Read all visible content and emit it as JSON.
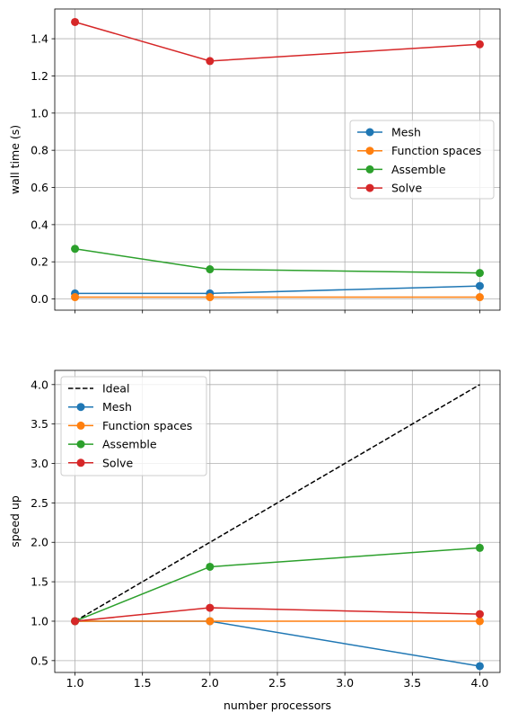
{
  "chart_data": [
    {
      "type": "line",
      "title": "",
      "xlabel": "",
      "ylabel": "wall time (s)",
      "x": [
        1,
        2,
        4
      ],
      "xlim": [
        0.85,
        4.15
      ],
      "ylim": [
        -0.06,
        1.56
      ],
      "xticks": [
        1.0,
        1.5,
        2.0,
        2.5,
        3.0,
        3.5,
        4.0
      ],
      "xtick_labels_visible": false,
      "yticks": [
        0.0,
        0.2,
        0.4,
        0.6,
        0.8,
        1.0,
        1.2,
        1.4
      ],
      "ytick_labels": [
        "0.0",
        "0.2",
        "0.4",
        "0.6",
        "0.8",
        "1.0",
        "1.2",
        "1.4"
      ],
      "grid": true,
      "legend_position": "center-right",
      "series": [
        {
          "name": "Mesh",
          "color": "#1f77b4",
          "marker": "circle",
          "values": [
            0.03,
            0.03,
            0.07
          ]
        },
        {
          "name": "Function spaces",
          "color": "#ff7f0e",
          "marker": "circle",
          "values": [
            0.01,
            0.01,
            0.01
          ]
        },
        {
          "name": "Assemble",
          "color": "#2ca02c",
          "marker": "circle",
          "values": [
            0.27,
            0.16,
            0.14
          ]
        },
        {
          "name": "Solve",
          "color": "#d62728",
          "marker": "circle",
          "values": [
            1.49,
            1.28,
            1.37
          ]
        }
      ]
    },
    {
      "type": "line",
      "title": "",
      "xlabel": "number processors",
      "ylabel": "speed up",
      "x": [
        1,
        2,
        4
      ],
      "xlim": [
        0.85,
        4.15
      ],
      "ylim": [
        0.35,
        4.18
      ],
      "xticks": [
        1.0,
        1.5,
        2.0,
        2.5,
        3.0,
        3.5,
        4.0
      ],
      "xtick_labels": [
        "1.0",
        "1.5",
        "2.0",
        "2.5",
        "3.0",
        "3.5",
        "4.0"
      ],
      "yticks": [
        0.5,
        1.0,
        1.5,
        2.0,
        2.5,
        3.0,
        3.5,
        4.0
      ],
      "ytick_labels": [
        "0.5",
        "1.0",
        "1.5",
        "2.0",
        "2.5",
        "3.0",
        "3.5",
        "4.0"
      ],
      "grid": true,
      "legend_position": "top-left",
      "series": [
        {
          "name": "Ideal",
          "color": "#000000",
          "marker": "none",
          "dashed": true,
          "x": [
            1,
            4
          ],
          "values": [
            1,
            4
          ]
        },
        {
          "name": "Mesh",
          "color": "#1f77b4",
          "marker": "circle",
          "values": [
            1.0,
            1.0,
            0.43
          ]
        },
        {
          "name": "Function spaces",
          "color": "#ff7f0e",
          "marker": "circle",
          "values": [
            1.0,
            1.0,
            1.0
          ]
        },
        {
          "name": "Assemble",
          "color": "#2ca02c",
          "marker": "circle",
          "values": [
            1.0,
            1.69,
            1.93
          ]
        },
        {
          "name": "Solve",
          "color": "#d62728",
          "marker": "circle",
          "values": [
            1.0,
            1.17,
            1.09
          ]
        }
      ]
    }
  ]
}
